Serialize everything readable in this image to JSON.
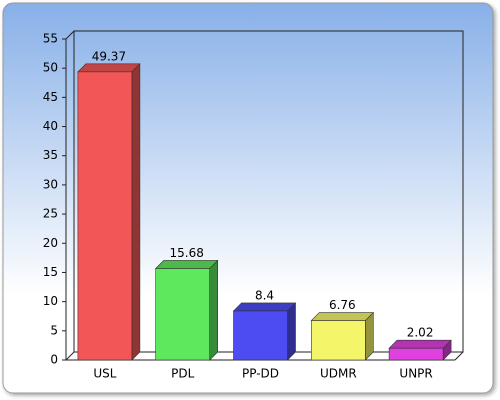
{
  "chart_data": {
    "type": "bar",
    "categories": [
      "USL",
      "PDL",
      "PP-DD",
      "UDMR",
      "UNPR"
    ],
    "values": [
      49.37,
      15.68,
      8.4,
      6.76,
      2.02
    ],
    "colors": [
      "#f25656",
      "#5ee85e",
      "#4c4cf2",
      "#f5f56a",
      "#e040e0"
    ],
    "ylim": [
      0,
      55
    ],
    "yticks": [
      0,
      5,
      10,
      15,
      20,
      25,
      30,
      35,
      40,
      45,
      50,
      55
    ],
    "grid": false
  }
}
